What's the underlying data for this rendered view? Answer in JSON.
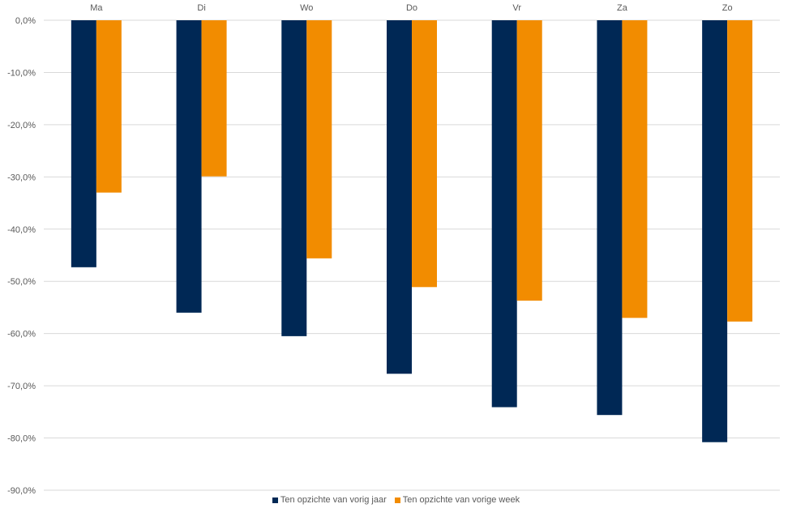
{
  "chart_data": {
    "type": "bar",
    "categories": [
      "Ma",
      "Di",
      "Wo",
      "Do",
      "Vr",
      "Za",
      "Zo"
    ],
    "series": [
      {
        "name": "Ten opzichte van vorig jaar",
        "color": "#002855",
        "values": [
          -47.3,
          -56.0,
          -60.5,
          -67.7,
          -74.1,
          -75.6,
          -80.8
        ]
      },
      {
        "name": "Ten opzichte van vorige week",
        "color": "#F28C00",
        "values": [
          -33.0,
          -29.9,
          -45.6,
          -51.1,
          -53.7,
          -57.0,
          -57.7
        ]
      }
    ],
    "y_ticks": [
      "0,0%",
      "-10,0%",
      "-20,0%",
      "-30,0%",
      "-40,0%",
      "-50,0%",
      "-60,0%",
      "-70,0%",
      "-80,0%",
      "-90,0%"
    ],
    "ylim": [
      -90,
      0
    ],
    "grid": true,
    "legend_position": "bottom",
    "title": "",
    "xlabel": "",
    "ylabel": ""
  }
}
